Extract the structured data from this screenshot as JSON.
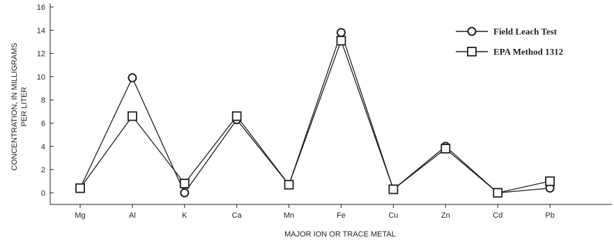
{
  "chart_data": {
    "type": "line",
    "categories": [
      "Mg",
      "Al",
      "K",
      "Ca",
      "Mn",
      "Fe",
      "Cu",
      "Zn",
      "Cd",
      "Pb"
    ],
    "series": [
      {
        "name": "Field Leach Test",
        "marker": "circle",
        "values": [
          0.4,
          9.9,
          0.0,
          6.3,
          0.7,
          13.8,
          0.3,
          4.0,
          0.0,
          0.4
        ]
      },
      {
        "name": "EPA Method 1312",
        "marker": "square",
        "values": [
          0.4,
          6.6,
          0.8,
          6.6,
          0.7,
          13.1,
          0.3,
          3.8,
          0.0,
          1.0
        ]
      }
    ],
    "title": "",
    "xlabel": "MAJOR ION OR TRACE METAL",
    "ylabel_line1": "CONCENTRATION, IN MILLIGRAMS",
    "ylabel_line2": "PER LITER",
    "ylim": [
      -1,
      16.3
    ],
    "yticks": [
      0,
      2,
      4,
      6,
      8,
      10,
      12,
      14,
      16
    ],
    "grid": false,
    "legend_position": "top-right",
    "line_color": "#231f20"
  }
}
